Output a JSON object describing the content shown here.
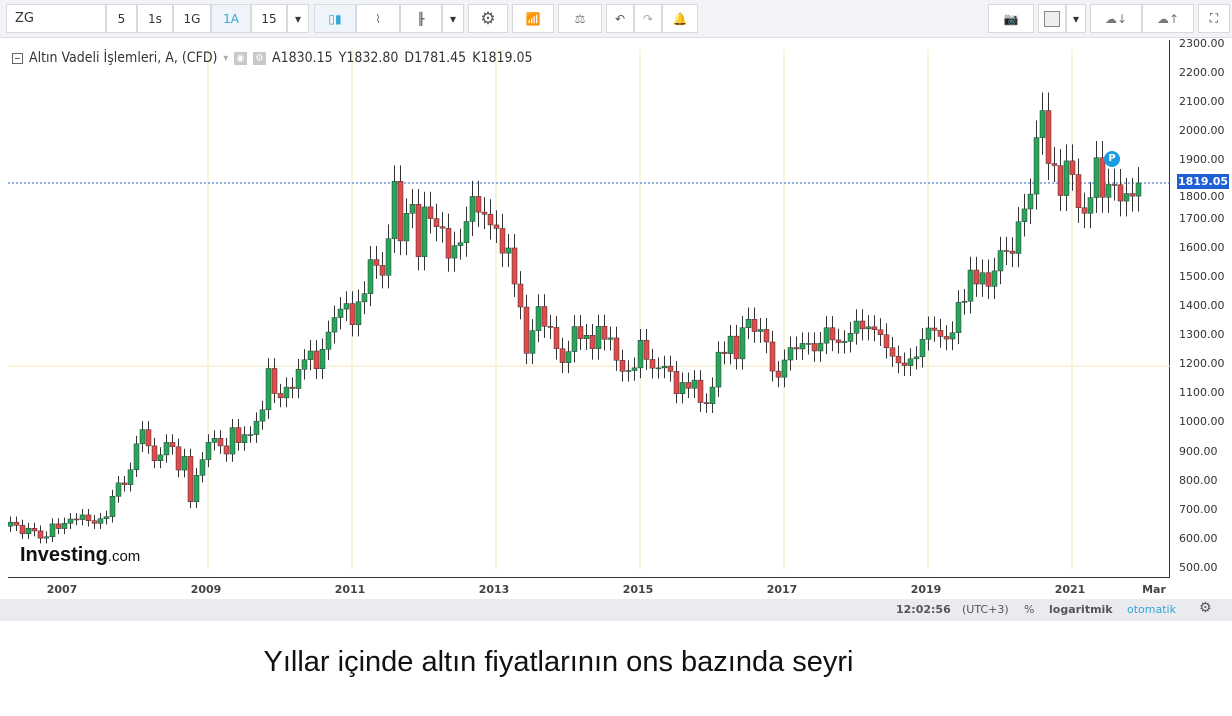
{
  "toolbar": {
    "symbol": "ZG",
    "intervals": [
      "5",
      "1s",
      "1G",
      "1A",
      "15"
    ],
    "active_interval": "1A",
    "icons": [
      "chevron-down-icon",
      "candlestick-icon",
      "area-chart-icon",
      "bar-chart-icon",
      "chevron-down-icon",
      "gear-icon",
      "indicators-icon",
      "compare-icon",
      "undo-icon",
      "redo-icon",
      "alert-icon",
      "camera-icon",
      "color-box-icon",
      "chevron-down-icon",
      "cloud-download-icon",
      "cloud-upload-icon",
      "fullscreen-icon"
    ]
  },
  "legend": {
    "title": "Altın Vadeli İşlemleri, A, (CFD)",
    "open": "A1830.15",
    "high": "Y1832.80",
    "low": "D1781.45",
    "close": "K1819.05"
  },
  "price_tag": "1819.05",
  "badge": "P",
  "status": {
    "time": "12:02:56",
    "tz": "(UTC+3)",
    "percent": "%",
    "log": "logaritmik",
    "auto": "otomatik"
  },
  "logo": {
    "main": "Investing",
    "suffix": ".com"
  },
  "caption": "Yıllar içinde altın fiyatlarının ons bazında seyri",
  "colors": {
    "up": "#26a65b",
    "down": "#e04b4b",
    "price_line": "#1e5fd6",
    "accent": "#35a6d8"
  },
  "chart_data": {
    "type": "candlestick",
    "interval": "monthly",
    "start": "2006-04",
    "last_price": 1819.05,
    "ylim": [
      500,
      2300
    ],
    "yticks": [
      "2300.00",
      "2200.00",
      "2100.00",
      "2000.00",
      "1900.00",
      "1800.00",
      "1700.00",
      "1600.00",
      "1500.00",
      "1400.00",
      "1300.00",
      "1200.00",
      "1100.00",
      "1000.00",
      "900.00",
      "800.00",
      "700.00",
      "600.00",
      "500.00"
    ],
    "xticks": [
      {
        "label": "2007",
        "month": "2007-01"
      },
      {
        "label": "2009",
        "month": "2009-01"
      },
      {
        "label": "2011",
        "month": "2011-01"
      },
      {
        "label": "2013",
        "month": "2013-01"
      },
      {
        "label": "2015",
        "month": "2015-01"
      },
      {
        "label": "2017",
        "month": "2017-01"
      },
      {
        "label": "2019",
        "month": "2019-01"
      },
      {
        "label": "2021",
        "month": "2021-01"
      },
      {
        "label": "Mar",
        "month": "2022-03"
      }
    ],
    "first_open": 640,
    "closes": [
      654,
      643,
      614,
      633,
      624,
      599,
      604,
      648,
      632,
      650,
      665,
      663,
      679,
      659,
      650,
      666,
      673,
      743,
      789,
      783,
      834,
      923,
      972,
      916,
      865,
      885,
      928,
      913,
      833,
      880,
      724,
      815,
      869,
      928,
      942,
      916,
      888,
      979,
      927,
      955,
      955,
      1001,
      1040,
      1182,
      1096,
      1081,
      1118,
      1113,
      1179,
      1212,
      1242,
      1181,
      1248,
      1307,
      1357,
      1386,
      1405,
      1332,
      1411,
      1439,
      1556,
      1536,
      1502,
      1628,
      1825,
      1620,
      1715,
      1746,
      1566,
      1737,
      1697,
      1669,
      1664,
      1561,
      1604,
      1614,
      1687,
      1773,
      1719,
      1712,
      1675,
      1663,
      1578,
      1596,
      1472,
      1393,
      1234,
      1312,
      1395,
      1327,
      1323,
      1250,
      1202,
      1240,
      1326,
      1284,
      1296,
      1250,
      1327,
      1282,
      1287,
      1210,
      1172,
      1175,
      1184,
      1279,
      1213,
      1183,
      1184,
      1190,
      1172,
      1095,
      1134,
      1114,
      1142,
      1065,
      1061,
      1118,
      1238,
      1233,
      1293,
      1215,
      1322,
      1351,
      1309,
      1316,
      1273,
      1173,
      1152,
      1211,
      1254,
      1249,
      1268,
      1268,
      1242,
      1269,
      1322,
      1280,
      1271,
      1275,
      1303,
      1345,
      1318,
      1325,
      1315,
      1298,
      1253,
      1224,
      1201,
      1192,
      1215,
      1222,
      1282,
      1321,
      1313,
      1292,
      1283,
      1305,
      1409,
      1413,
      1520,
      1472,
      1511,
      1464,
      1517,
      1587,
      1585,
      1577,
      1686,
      1730,
      1781,
      1975,
      2068,
      1886,
      1879,
      1776,
      1895,
      1848,
      1734,
      1715,
      1769,
      1906,
      1770,
      1814,
      1813,
      1757,
      1783,
      1774,
      1819
    ]
  }
}
